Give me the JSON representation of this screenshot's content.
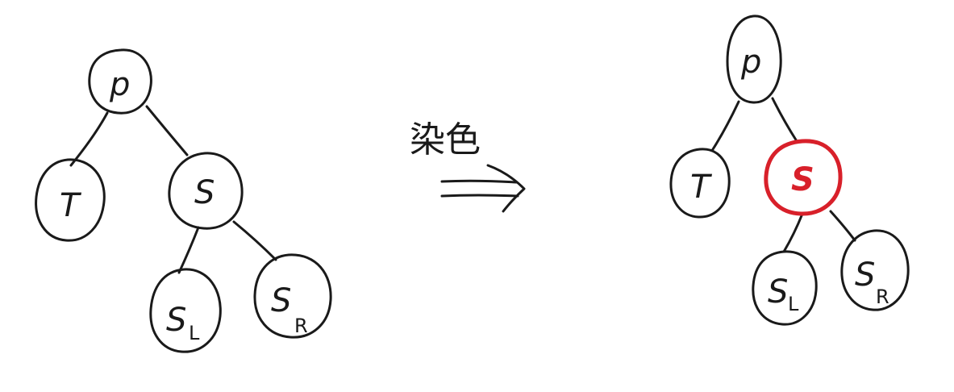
{
  "colors": {
    "ink": "#1a1a1a",
    "highlight": "#d8202a"
  },
  "left_tree": {
    "p": "p",
    "t": "T",
    "s": "S",
    "sl_main": "S",
    "sl_sub": "L",
    "sr_main": "S",
    "sr_sub": "R"
  },
  "transform": {
    "caption": "染色",
    "arrow_icon": "double-arrow-icon"
  },
  "right_tree": {
    "p": "p",
    "t": "T",
    "s": "S",
    "sl_main": "S",
    "sl_sub": "L",
    "sr_main": "S",
    "sr_sub": "R"
  }
}
